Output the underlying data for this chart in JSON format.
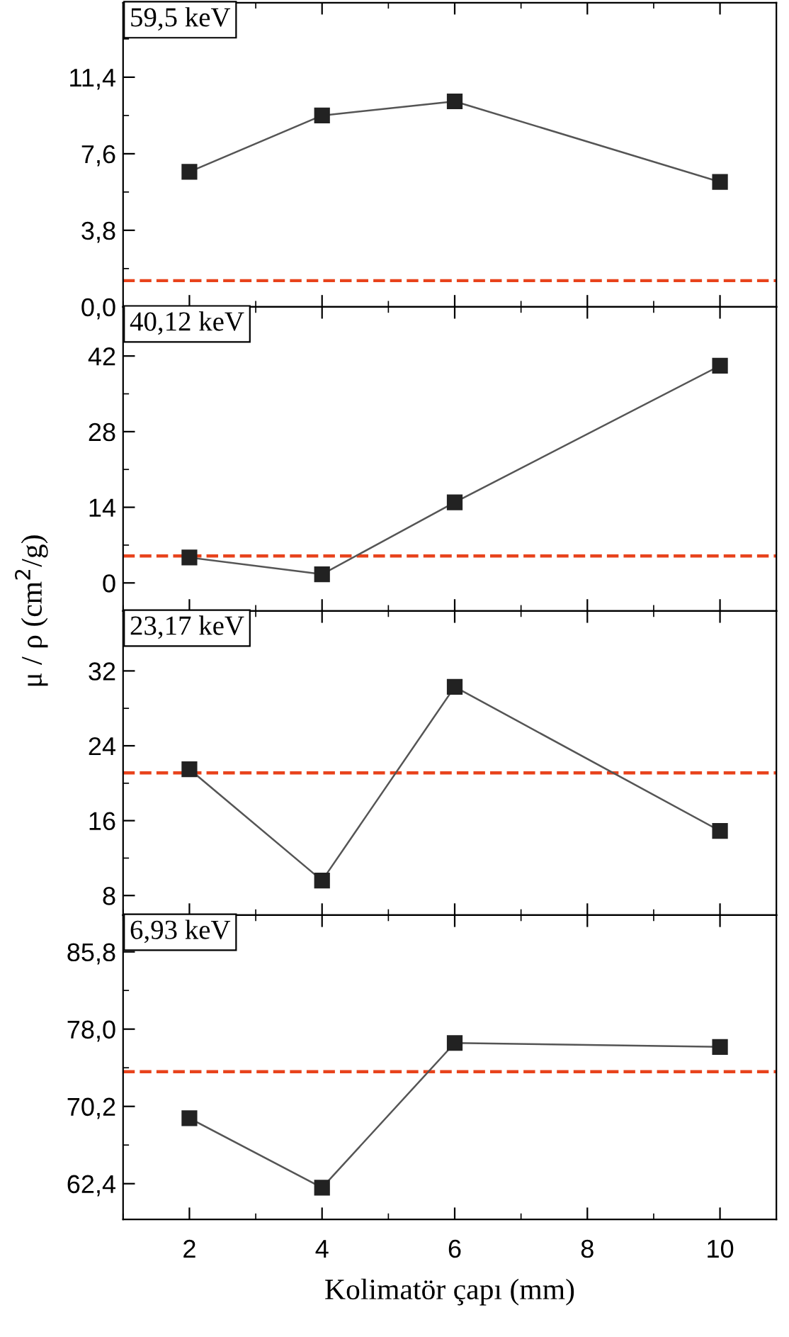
{
  "chart_data": [
    {
      "type": "line",
      "title": "59,5 keV",
      "x": [
        2,
        4,
        6,
        10
      ],
      "series": [
        {
          "color": "#222222",
          "values": [
            6.7,
            9.5,
            10.2,
            6.2
          ]
        }
      ],
      "marker": "square",
      "line_style": "solid",
      "xlim": [
        1,
        10.85
      ],
      "xticks": [
        2,
        4,
        6,
        8,
        10
      ],
      "ylim": [
        0,
        15.1
      ],
      "yticks": [
        {
          "value": 0,
          "label": "0,0"
        },
        {
          "value": 3.8,
          "label": "3,8"
        },
        {
          "value": 7.6,
          "label": "7,6"
        },
        {
          "value": 11.4,
          "label": "11,4"
        }
      ],
      "ref_lines": [
        {
          "axis": "y",
          "value": 1.3,
          "color": "#e8431c",
          "line_style": "dashed"
        }
      ],
      "tick_labels": "y",
      "grid": false,
      "legend": false
    },
    {
      "type": "line",
      "title": "40,12 keV",
      "x": [
        2,
        4,
        6,
        10
      ],
      "series": [
        {
          "color": "#222222",
          "values": [
            4.7,
            1.6,
            14.9,
            40.2
          ]
        }
      ],
      "marker": "square",
      "line_style": "solid",
      "xlim": [
        1,
        10.85
      ],
      "xticks": [
        2,
        4,
        6,
        8,
        10
      ],
      "ylim": [
        -5.2,
        51.1
      ],
      "yticks": [
        0,
        14,
        28,
        42
      ],
      "ref_lines": [
        {
          "axis": "y",
          "value": 5.0,
          "color": "#e8431c",
          "line_style": "dashed"
        }
      ],
      "tick_labels": "y",
      "grid": false,
      "legend": false
    },
    {
      "type": "line",
      "title": "23,17 keV",
      "ylabel": "μ / ρ (cm$^{2}$/g)",
      "x": [
        2,
        4,
        6,
        10
      ],
      "series": [
        {
          "color": "#222222",
          "values": [
            21.5,
            9.6,
            30.3,
            14.9
          ]
        }
      ],
      "marker": "square",
      "line_style": "solid",
      "xlim": [
        1,
        10.85
      ],
      "xticks": [
        2,
        4,
        6,
        8,
        10
      ],
      "ylim": [
        5.9,
        38.4
      ],
      "yticks": [
        8,
        16,
        24,
        32
      ],
      "ref_lines": [
        {
          "axis": "y",
          "value": 21.1,
          "color": "#e8431c",
          "line_style": "dashed"
        }
      ],
      "tick_labels": "y",
      "grid": false,
      "legend": false
    },
    {
      "type": "line",
      "title": "6,93 keV",
      "xlabel": "Kolimatör çapı (mm)",
      "x": [
        2,
        4,
        6,
        10
      ],
      "series": [
        {
          "color": "#222222",
          "values": [
            69.0,
            62.0,
            76.6,
            76.2
          ]
        }
      ],
      "marker": "square",
      "line_style": "solid",
      "xlim": [
        1,
        10.85
      ],
      "xticks": [
        2,
        4,
        6,
        8,
        10
      ],
      "ylim": [
        58.8,
        89.5
      ],
      "yticks": [
        {
          "value": 62.4,
          "label": "62,4"
        },
        {
          "value": 70.2,
          "label": "70,2"
        },
        {
          "value": 78.0,
          "label": "78,0"
        },
        {
          "value": 85.8,
          "label": "85,8"
        }
      ],
      "ref_lines": [
        {
          "axis": "y",
          "value": 73.7,
          "color": "#e8431c",
          "line_style": "dashed"
        }
      ],
      "grid": false,
      "legend": false
    }
  ]
}
